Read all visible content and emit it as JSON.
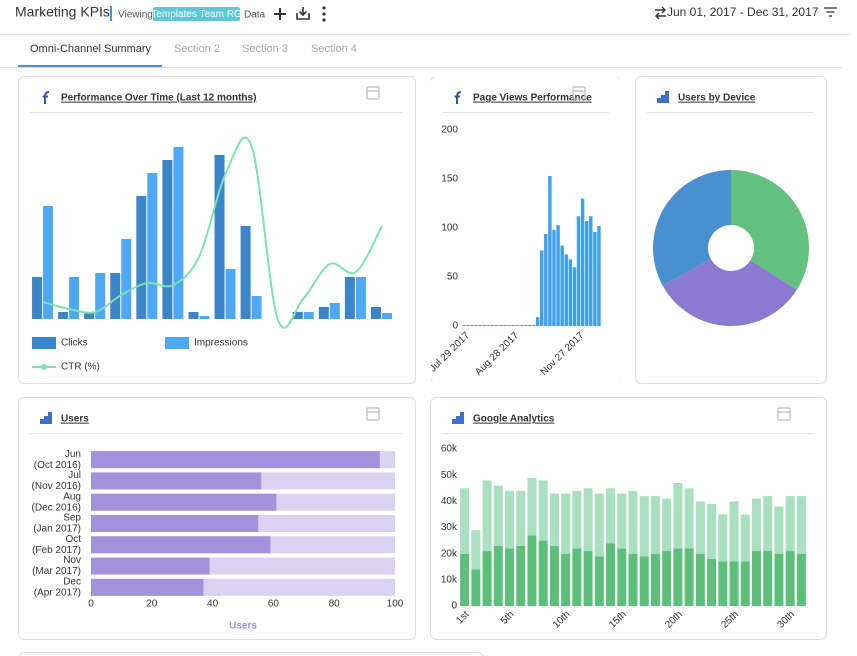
{
  "header": {
    "title": "Marketing KPIs",
    "viewing": "Viewing",
    "badge": "Templates Team RG",
    "data_label": "Data",
    "date_range": "Jun 01, 2017 - Dec 31, 2017"
  },
  "tabs": [
    "Omni-Channel Summary",
    "Section 2",
    "Section 3",
    "Section 4"
  ],
  "chart_data": [
    {
      "type": "bar_line",
      "title": "Performance Over Time (Last 12 months)",
      "categories": [
        null,
        null,
        null,
        null,
        null,
        null,
        null,
        null,
        null,
        null,
        null,
        null,
        null,
        null
      ],
      "ylim": [
        0,
        200
      ],
      "series": [
        {
          "name": "Clicks",
          "type": "bar",
          "color": "#3a86c8",
          "values": [
            42,
            7,
            7,
            46,
            123,
            159,
            7,
            164,
            93,
            0,
            7,
            12,
            42,
            12
          ]
        },
        {
          "name": "Impressions",
          "type": "bar",
          "color": "#4ea8f5",
          "values": [
            113,
            42,
            46,
            80,
            146,
            172,
            3,
            50,
            23,
            0,
            7,
            16,
            42,
            6
          ]
        },
        {
          "name": "CTR (%)",
          "type": "line",
          "color": "#7be3b0",
          "values": [
            17,
            10,
            7,
            24,
            36,
            34,
            63,
            145,
            173,
            0,
            21,
            55,
            47,
            93
          ]
        }
      ]
    },
    {
      "type": "bar",
      "title": "Page Views Performance",
      "categories": [
        null,
        "Jul 29 2017",
        null,
        null,
        null,
        null,
        null,
        null,
        null,
        null,
        null,
        null,
        null,
        "Aug 28 2017",
        null,
        null,
        null,
        null,
        null,
        null,
        null,
        null,
        null,
        null,
        null,
        null,
        null,
        null,
        null,
        "Nov 27 2017",
        null,
        null,
        null,
        null
      ],
      "values": [
        1,
        1,
        1,
        1,
        1,
        1,
        1,
        1,
        1,
        1,
        1,
        1,
        1,
        1,
        1,
        1,
        1,
        1,
        9,
        77,
        94,
        153,
        98,
        103,
        82,
        73,
        68,
        60,
        112,
        130,
        107,
        112,
        96,
        102
      ],
      "color": "#3f9ff0",
      "ylim": [
        0,
        200
      ],
      "yticks": [
        0,
        50,
        100,
        150,
        200
      ]
    },
    {
      "type": "pie",
      "title": "Users by Device",
      "donut": true,
      "values": [
        34,
        33,
        33
      ],
      "colors": [
        "#62c17e",
        "#8b7bd0",
        "#4a90d0"
      ]
    },
    {
      "type": "hbar",
      "title": "Users",
      "categories": [
        [
          "Jun",
          "(Oct 2016)"
        ],
        [
          "Jul",
          "(Nov 2016)"
        ],
        [
          "Aug",
          "(Dec 2016)"
        ],
        [
          "Sep",
          "(Jan 2017)"
        ],
        [
          "Oct",
          "(Feb 2017)"
        ],
        [
          "Nov",
          "(Mar 2017)"
        ],
        [
          "Dec",
          "(Apr 2017)"
        ]
      ],
      "values": [
        95,
        56,
        61,
        55,
        59,
        39,
        37
      ],
      "color": "#a093db",
      "track_color": "#d9d3f1",
      "xlim": [
        0,
        100
      ],
      "xticks": [
        0,
        20,
        40,
        60,
        80,
        100
      ],
      "x_label": "Users"
    },
    {
      "type": "stacked_bar",
      "title": "Google Analytics",
      "categories": [
        "1st",
        null,
        null,
        null,
        "5th",
        null,
        null,
        null,
        null,
        "10th",
        null,
        null,
        null,
        null,
        "15th",
        null,
        null,
        null,
        null,
        "20th",
        null,
        null,
        null,
        null,
        "25th",
        null,
        null,
        null,
        null,
        "30th",
        null
      ],
      "ylim": [
        0,
        60000
      ],
      "yticks": [
        0,
        {
          "value": 10000,
          "label": "10k"
        },
        {
          "value": 20000,
          "label": "20k"
        },
        {
          "value": 30000,
          "label": "30k"
        },
        {
          "value": 40000,
          "label": "40k"
        },
        {
          "value": 50000,
          "label": "50k"
        },
        {
          "value": 60000,
          "label": "60k"
        }
      ],
      "series": [
        {
          "color": "#5cbf7a",
          "values": [
            20000,
            14000,
            21000,
            23000,
            22000,
            23000,
            27000,
            25000,
            23000,
            20000,
            22000,
            21000,
            19000,
            24000,
            22000,
            20000,
            19000,
            20000,
            21000,
            22000,
            22000,
            20000,
            18000,
            17000,
            17000,
            17000,
            21000,
            21000,
            20000,
            21000,
            20000
          ]
        },
        {
          "color": "#a9e0c0",
          "values": [
            25000,
            15000,
            27000,
            23000,
            22000,
            21000,
            22000,
            23000,
            20000,
            23000,
            22000,
            24000,
            24000,
            21000,
            21000,
            24000,
            23000,
            22000,
            20000,
            25000,
            23000,
            20000,
            21000,
            18000,
            23000,
            18000,
            20000,
            21000,
            18000,
            21000,
            22000
          ]
        }
      ]
    }
  ]
}
